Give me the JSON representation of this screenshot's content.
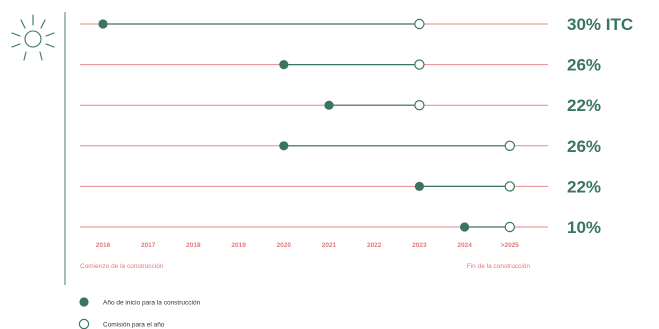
{
  "colors": {
    "accent": "#3b7561",
    "gridline": "#e88a8a",
    "tick_text": "#e07a7a",
    "axis_line": "#4a8070"
  },
  "icons": {
    "sun": "sun-icon"
  },
  "chart_data": {
    "type": "dumbbell",
    "categories": [
      "2016",
      "2017",
      "2018",
      "2019",
      "2020",
      "2021",
      "2022",
      "2023",
      "2024",
      ">2025"
    ],
    "rows": [
      {
        "start": "2016",
        "end": "2023",
        "label": "30% ITC"
      },
      {
        "start": "2020",
        "end": "2023",
        "label": "26%"
      },
      {
        "start": "2021",
        "end": "2023",
        "label": "22%"
      },
      {
        "start": "2020",
        "end": ">2025",
        "label": "26%"
      },
      {
        "start": "2023",
        "end": ">2025",
        "label": "22%"
      },
      {
        "start": "2024",
        "end": ">2025",
        "label": "10%"
      }
    ],
    "xlabel_start": "Comienzo de la construcción",
    "xlabel_end": "Fin de la construcción",
    "legend": [
      {
        "marker": "filled",
        "label": "Año de inicio para la construcción"
      },
      {
        "marker": "hollow",
        "label": "Comisión para el año"
      }
    ]
  }
}
